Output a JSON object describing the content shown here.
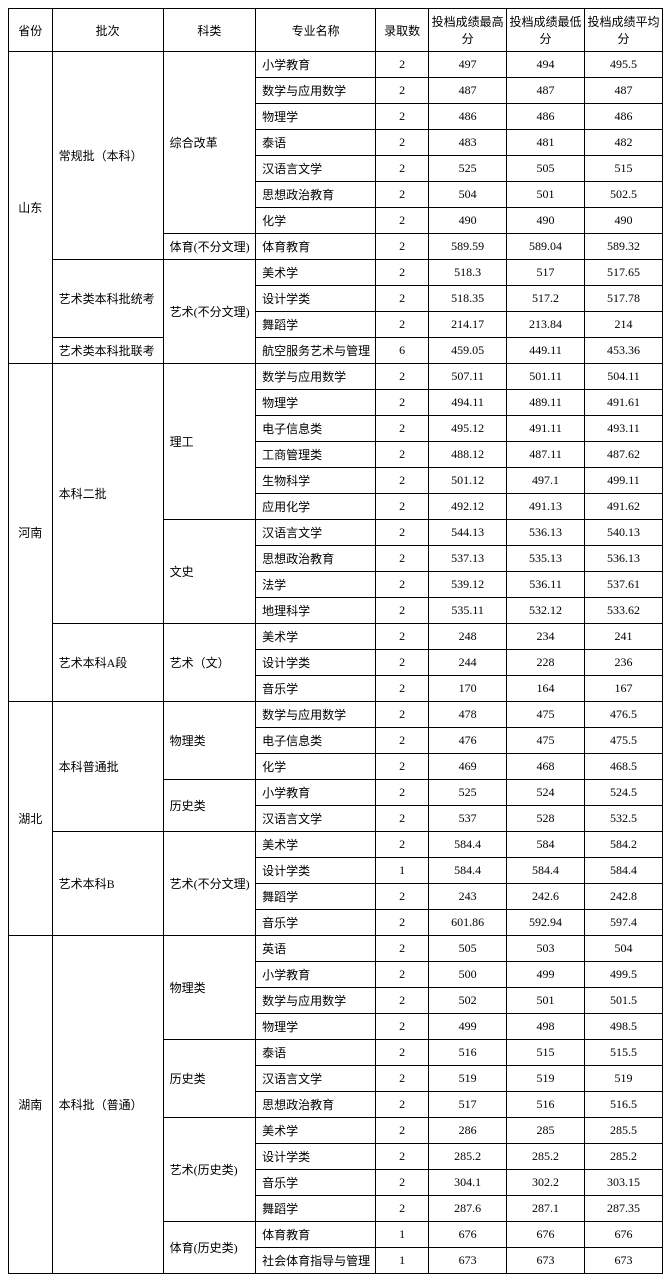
{
  "headers": [
    "省份",
    "批次",
    "科类",
    "专业名称",
    "录取数",
    "投档成绩最高分",
    "投档成绩最低分",
    "投档成绩平均分"
  ],
  "rows": [
    {
      "prov": "山东",
      "provSpan": 12,
      "batch": "常规批（本科）",
      "batchSpan": 8,
      "cat": "综合改革",
      "catSpan": 7,
      "major": "小学教育",
      "n": "2",
      "hi": "497",
      "lo": "494",
      "avg": "495.5"
    },
    {
      "major": "数学与应用数学",
      "n": "2",
      "hi": "487",
      "lo": "487",
      "avg": "487"
    },
    {
      "major": "物理学",
      "n": "2",
      "hi": "486",
      "lo": "486",
      "avg": "486"
    },
    {
      "major": "泰语",
      "n": "2",
      "hi": "483",
      "lo": "481",
      "avg": "482"
    },
    {
      "major": "汉语言文学",
      "n": "2",
      "hi": "525",
      "lo": "505",
      "avg": "515"
    },
    {
      "major": "思想政治教育",
      "n": "2",
      "hi": "504",
      "lo": "501",
      "avg": "502.5"
    },
    {
      "major": "化学",
      "n": "2",
      "hi": "490",
      "lo": "490",
      "avg": "490"
    },
    {
      "cat": "体育(不分文理)",
      "catSpan": 1,
      "major": "体育教育",
      "n": "2",
      "hi": "589.59",
      "lo": "589.04",
      "avg": "589.32"
    },
    {
      "batch": "艺术类本科批统考",
      "batchSpan": 3,
      "cat": "艺术(不分文理)",
      "catSpan": 4,
      "major": "美术学",
      "n": "2",
      "hi": "518.3",
      "lo": "517",
      "avg": "517.65"
    },
    {
      "major": "设计学类",
      "n": "2",
      "hi": "518.35",
      "lo": "517.2",
      "avg": "517.78"
    },
    {
      "major": "舞蹈学",
      "n": "2",
      "hi": "214.17",
      "lo": "213.84",
      "avg": "214"
    },
    {
      "batch": "艺术类本科批联考",
      "batchSpan": 1,
      "major": "航空服务艺术与管理",
      "n": "6",
      "hi": "459.05",
      "lo": "449.11",
      "avg": "453.36"
    },
    {
      "prov": "河南",
      "provSpan": 13,
      "batch": "本科二批",
      "batchSpan": 10,
      "cat": "理工",
      "catSpan": 6,
      "major": "数学与应用数学",
      "n": "2",
      "hi": "507.11",
      "lo": "501.11",
      "avg": "504.11"
    },
    {
      "major": "物理学",
      "n": "2",
      "hi": "494.11",
      "lo": "489.11",
      "avg": "491.61"
    },
    {
      "major": "电子信息类",
      "n": "2",
      "hi": "495.12",
      "lo": "491.11",
      "avg": "493.11"
    },
    {
      "major": "工商管理类",
      "n": "2",
      "hi": "488.12",
      "lo": "487.11",
      "avg": "487.62"
    },
    {
      "major": "生物科学",
      "n": "2",
      "hi": "501.12",
      "lo": "497.1",
      "avg": "499.11"
    },
    {
      "major": "应用化学",
      "n": "2",
      "hi": "492.12",
      "lo": "491.13",
      "avg": "491.62"
    },
    {
      "cat": "文史",
      "catSpan": 4,
      "major": "汉语言文学",
      "n": "2",
      "hi": "544.13",
      "lo": "536.13",
      "avg": "540.13"
    },
    {
      "major": "思想政治教育",
      "n": "2",
      "hi": "537.13",
      "lo": "535.13",
      "avg": "536.13"
    },
    {
      "major": "法学",
      "n": "2",
      "hi": "539.12",
      "lo": "536.11",
      "avg": "537.61"
    },
    {
      "major": "地理科学",
      "n": "2",
      "hi": "535.11",
      "lo": "532.12",
      "avg": "533.62"
    },
    {
      "batch": "艺术本科A段",
      "batchSpan": 3,
      "cat": "艺术（文）",
      "catSpan": 3,
      "major": "美术学",
      "n": "2",
      "hi": "248",
      "lo": "234",
      "avg": "241"
    },
    {
      "major": "设计学类",
      "n": "2",
      "hi": "244",
      "lo": "228",
      "avg": "236"
    },
    {
      "major": "音乐学",
      "n": "2",
      "hi": "170",
      "lo": "164",
      "avg": "167"
    },
    {
      "prov": "湖北",
      "provSpan": 9,
      "batch": "本科普通批",
      "batchSpan": 5,
      "cat": "物理类",
      "catSpan": 3,
      "major": "数学与应用数学",
      "n": "2",
      "hi": "478",
      "lo": "475",
      "avg": "476.5"
    },
    {
      "major": "电子信息类",
      "n": "2",
      "hi": "476",
      "lo": "475",
      "avg": "475.5"
    },
    {
      "major": "化学",
      "n": "2",
      "hi": "469",
      "lo": "468",
      "avg": "468.5"
    },
    {
      "cat": "历史类",
      "catSpan": 2,
      "major": "小学教育",
      "n": "2",
      "hi": "525",
      "lo": "524",
      "avg": "524.5"
    },
    {
      "major": "汉语言文学",
      "n": "2",
      "hi": "537",
      "lo": "528",
      "avg": "532.5"
    },
    {
      "batch": "艺术本科B",
      "batchSpan": 4,
      "cat": "艺术(不分文理)",
      "catSpan": 4,
      "major": "美术学",
      "n": "2",
      "hi": "584.4",
      "lo": "584",
      "avg": "584.2"
    },
    {
      "major": "设计学类",
      "n": "1",
      "hi": "584.4",
      "lo": "584.4",
      "avg": "584.4"
    },
    {
      "major": "舞蹈学",
      "n": "2",
      "hi": "243",
      "lo": "242.6",
      "avg": "242.8"
    },
    {
      "major": "音乐学",
      "n": "2",
      "hi": "601.86",
      "lo": "592.94",
      "avg": "597.4"
    },
    {
      "prov": "湖南",
      "provSpan": 13,
      "batch": "本科批（普通）",
      "batchSpan": 13,
      "cat": "物理类",
      "catSpan": 4,
      "major": "英语",
      "n": "2",
      "hi": "505",
      "lo": "503",
      "avg": "504"
    },
    {
      "major": "小学教育",
      "n": "2",
      "hi": "500",
      "lo": "499",
      "avg": "499.5"
    },
    {
      "major": "数学与应用数学",
      "n": "2",
      "hi": "502",
      "lo": "501",
      "avg": "501.5"
    },
    {
      "major": "物理学",
      "n": "2",
      "hi": "499",
      "lo": "498",
      "avg": "498.5"
    },
    {
      "cat": "历史类",
      "catSpan": 3,
      "major": "泰语",
      "n": "2",
      "hi": "516",
      "lo": "515",
      "avg": "515.5"
    },
    {
      "major": "汉语言文学",
      "n": "2",
      "hi": "519",
      "lo": "519",
      "avg": "519"
    },
    {
      "major": "思想政治教育",
      "n": "2",
      "hi": "517",
      "lo": "516",
      "avg": "516.5"
    },
    {
      "cat": "艺术(历史类)",
      "catSpan": 4,
      "major": "美术学",
      "n": "2",
      "hi": "286",
      "lo": "285",
      "avg": "285.5"
    },
    {
      "major": "设计学类",
      "n": "2",
      "hi": "285.2",
      "lo": "285.2",
      "avg": "285.2"
    },
    {
      "major": "音乐学",
      "n": "2",
      "hi": "304.1",
      "lo": "302.2",
      "avg": "303.15"
    },
    {
      "major": "舞蹈学",
      "n": "2",
      "hi": "287.6",
      "lo": "287.1",
      "avg": "287.35"
    },
    {
      "cat": "体育(历史类)",
      "catSpan": 2,
      "major": "体育教育",
      "n": "1",
      "hi": "676",
      "lo": "676",
      "avg": "676"
    },
    {
      "major": "社会体育指导与管理",
      "n": "1",
      "hi": "673",
      "lo": "673",
      "avg": "673"
    }
  ]
}
